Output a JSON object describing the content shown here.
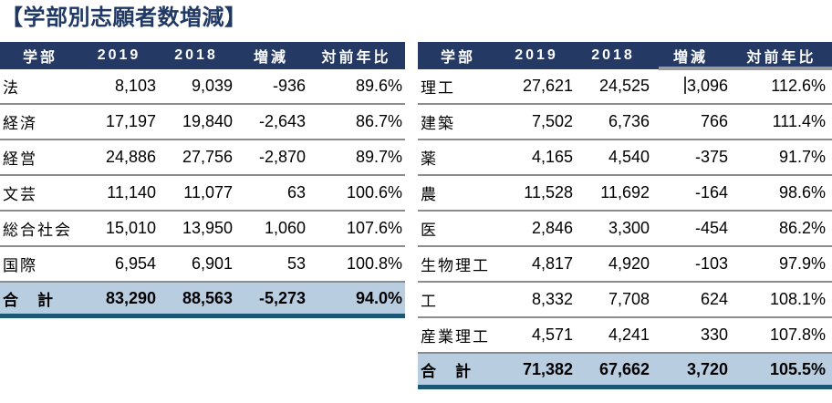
{
  "title": "【学部別志願者数増減】",
  "columns": {
    "faculty": "学部",
    "y2019": "2019",
    "y2018": "2018",
    "diff": "増減",
    "ratio": "対前年比"
  },
  "left_table": {
    "rows": [
      {
        "name": "法",
        "y2019": "8,103",
        "y2018": "9,039",
        "diff": "-936",
        "ratio": "89.6%",
        "total": false
      },
      {
        "name": "経済",
        "y2019": "17,197",
        "y2018": "19,840",
        "diff": "-2,643",
        "ratio": "86.7%",
        "total": false
      },
      {
        "name": "経営",
        "y2019": "24,886",
        "y2018": "27,756",
        "diff": "-2,870",
        "ratio": "89.7%",
        "total": false
      },
      {
        "name": "文芸",
        "y2019": "11,140",
        "y2018": "11,077",
        "diff": "63",
        "ratio": "100.6%",
        "total": false
      },
      {
        "name": "総合社会",
        "y2019": "15,010",
        "y2018": "13,950",
        "diff": "1,060",
        "ratio": "107.6%",
        "total": false
      },
      {
        "name": "国際",
        "y2019": "6,954",
        "y2018": "6,901",
        "diff": "53",
        "ratio": "100.8%",
        "total": false
      },
      {
        "name": "合　計",
        "y2019": "83,290",
        "y2018": "88,563",
        "diff": "-5,273",
        "ratio": "94.0%",
        "total": true
      }
    ]
  },
  "right_table": {
    "rows": [
      {
        "name": "理工",
        "y2019": "27,621",
        "y2018": "24,525",
        "diff": "3,096",
        "ratio": "112.6%",
        "total": false,
        "cursor": true
      },
      {
        "name": "建築",
        "y2019": "7,502",
        "y2018": "6,736",
        "diff": "766",
        "ratio": "111.4%",
        "total": false
      },
      {
        "name": "薬",
        "y2019": "4,165",
        "y2018": "4,540",
        "diff": "-375",
        "ratio": "91.7%",
        "total": false
      },
      {
        "name": "農",
        "y2019": "11,528",
        "y2018": "11,692",
        "diff": "-164",
        "ratio": "98.6%",
        "total": false
      },
      {
        "name": "医",
        "y2019": "2,846",
        "y2018": "3,300",
        "diff": "-454",
        "ratio": "86.2%",
        "total": false
      },
      {
        "name": "生物理工",
        "y2019": "4,817",
        "y2018": "4,920",
        "diff": "-103",
        "ratio": "97.9%",
        "total": false
      },
      {
        "name": "工",
        "y2019": "8,332",
        "y2018": "7,708",
        "diff": "624",
        "ratio": "108.1%",
        "total": false
      },
      {
        "name": "産業理工",
        "y2019": "4,571",
        "y2018": "4,241",
        "diff": "330",
        "ratio": "107.8%",
        "total": false
      },
      {
        "name": "合　計",
        "y2019": "71,382",
        "y2018": "67,662",
        "diff": "3,720",
        "ratio": "105.5%",
        "total": true
      }
    ]
  },
  "colors": {
    "header_bg": "#243A64",
    "title_text": "#1F3864",
    "total_row_bg": "#B9CDE1",
    "total_row_border": "#1C5876",
    "row_separator": "#8c8c8c",
    "header_underline_artifact": "#9b9b9b"
  }
}
